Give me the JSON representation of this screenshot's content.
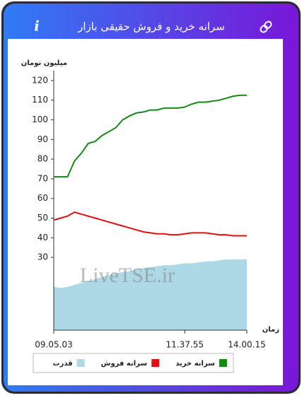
{
  "header": {
    "title": "سرانه خرید و فروش حقیقی بازار",
    "info": "i"
  },
  "chart_data": {
    "type": "line",
    "y_label": "میلیون تومان",
    "x_label": "زمان",
    "watermark": "LiveTSE.ir",
    "categories": [
      "09.05.03",
      null,
      null,
      null,
      null,
      null,
      null,
      null,
      null,
      null,
      null,
      null,
      null,
      null,
      null,
      null,
      null,
      null,
      null,
      "11.37.55",
      null,
      null,
      null,
      null,
      null,
      null,
      null,
      null,
      "14.00.15"
    ],
    "series": [
      {
        "name": "سرانه خرید",
        "color": "#138a13",
        "values": [
          71,
          71,
          71,
          79,
          83,
          88,
          89,
          92,
          94,
          96,
          100,
          102,
          103.5,
          104,
          105,
          105,
          106,
          106,
          106,
          106.5,
          108,
          109,
          109,
          109.5,
          110,
          111,
          112,
          112.5,
          112.5
        ]
      },
      {
        "name": "سرانه فروش",
        "color": "#e01010",
        "values": [
          49,
          50,
          51,
          53,
          52,
          51,
          50,
          49,
          48,
          47,
          46,
          45,
          44,
          43,
          42.5,
          42,
          42,
          41.5,
          41.5,
          42,
          42.5,
          42.5,
          42.5,
          42,
          41.5,
          41.5,
          41,
          41,
          41
        ]
      },
      {
        "name": "قدرت",
        "color": "#add8e6",
        "kind": "area",
        "values": [
          15,
          14.5,
          15,
          16,
          17,
          18,
          19,
          20,
          21,
          22,
          22.5,
          23,
          24,
          24.5,
          25,
          25.5,
          26,
          26,
          26.5,
          27,
          27,
          27.5,
          28,
          28,
          28.5,
          29,
          29,
          29,
          29
        ]
      }
    ],
    "ylim": [
      -7,
      125
    ],
    "yticks": [
      30,
      40,
      50,
      60,
      70,
      80,
      90,
      100,
      110,
      120
    ],
    "grid": false
  }
}
